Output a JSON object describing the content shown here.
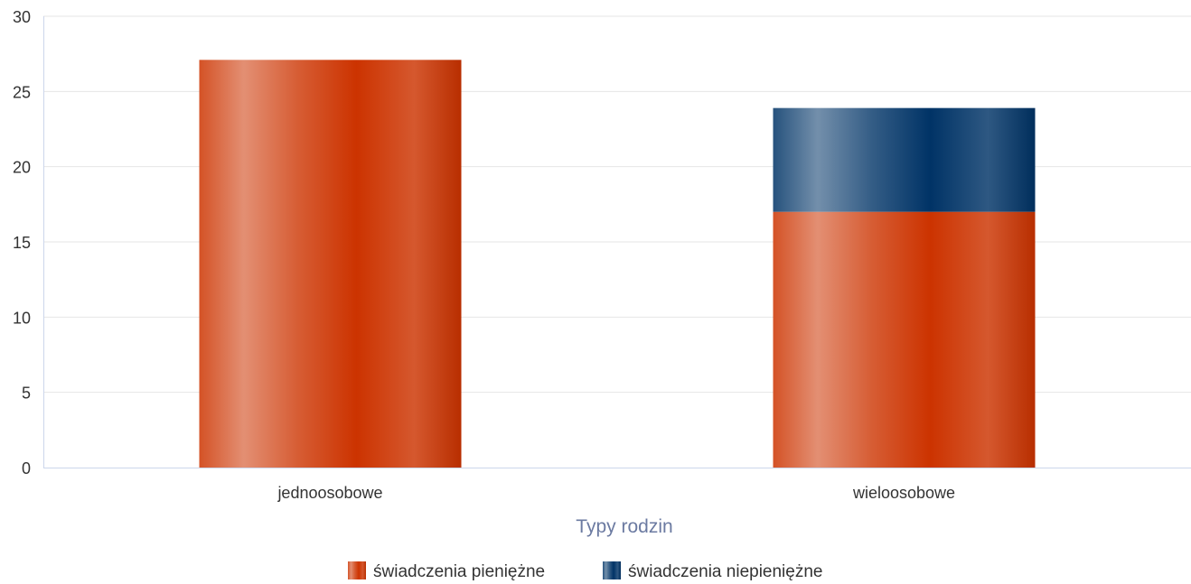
{
  "chart_data": {
    "type": "bar",
    "stacked": true,
    "categories": [
      "jednoosobowe",
      "wieloosobowe"
    ],
    "series": [
      {
        "name": "świadczenia pieniężne",
        "values": [
          27.1,
          17
        ],
        "color": "#cc3300"
      },
      {
        "name": "świadczenia niepieniężne",
        "values": [
          0,
          6.9
        ],
        "color": "#003366"
      }
    ],
    "title": "",
    "xlabel": "Typy rodzin",
    "ylabel": "",
    "ylim": [
      0,
      30
    ],
    "yticks": [
      0,
      5,
      10,
      15,
      20,
      25,
      30
    ],
    "grid": true,
    "legend_position": "bottom-center"
  }
}
